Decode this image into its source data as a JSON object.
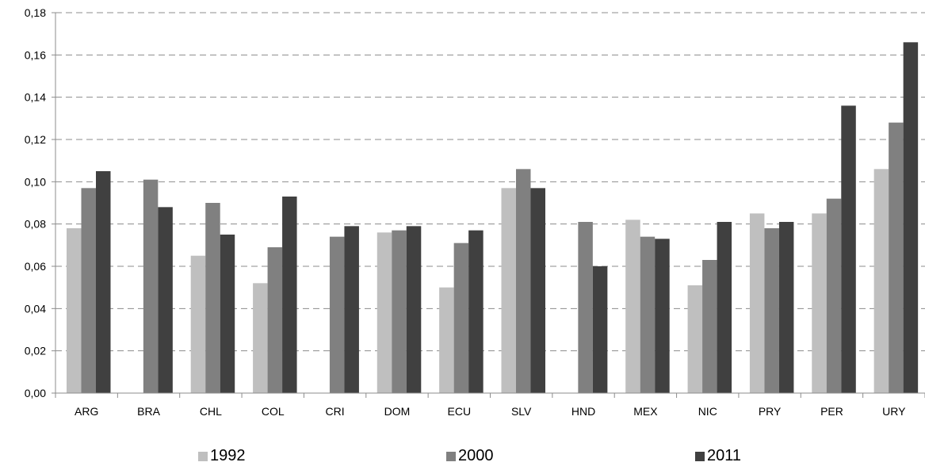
{
  "chart_data": {
    "type": "bar",
    "categories": [
      "ARG",
      "BRA",
      "CHL",
      "COL",
      "CRI",
      "DOM",
      "ECU",
      "SLV",
      "HND",
      "MEX",
      "NIC",
      "PRY",
      "PER",
      "URY"
    ],
    "series": [
      {
        "name": "1992",
        "color": "#bfbfbf",
        "values": [
          0.078,
          null,
          0.065,
          0.052,
          null,
          0.076,
          0.05,
          0.097,
          null,
          0.082,
          0.051,
          0.085,
          0.085,
          0.106
        ]
      },
      {
        "name": "2000",
        "color": "#808080",
        "values": [
          0.097,
          0.101,
          0.09,
          0.069,
          0.074,
          0.077,
          0.071,
          0.106,
          0.081,
          0.074,
          0.063,
          0.078,
          0.092,
          0.128
        ]
      },
      {
        "name": "2011",
        "color": "#404040",
        "values": [
          0.105,
          0.088,
          0.075,
          0.093,
          0.079,
          0.079,
          0.077,
          0.097,
          0.06,
          0.073,
          0.081,
          0.081,
          0.136,
          0.166
        ]
      }
    ],
    "yticks": [
      "0,00",
      "0,02",
      "0,04",
      "0,06",
      "0,08",
      "0,10",
      "0,12",
      "0,14",
      "0,16",
      "0,18"
    ],
    "ylim": [
      0,
      0.18
    ],
    "grid": true,
    "legend_position": "bottom"
  }
}
